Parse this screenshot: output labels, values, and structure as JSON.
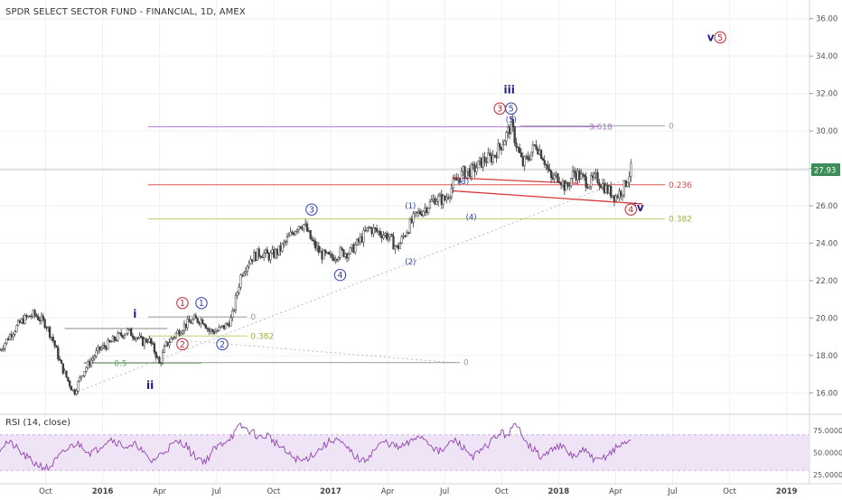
{
  "chart_data": {
    "type": "candlestick",
    "title": "SPDR SELECT SECTOR FUND - FINANCIAL, 1D, AMEX",
    "last_price": "27.93",
    "price_axis": {
      "ticks": [
        "16.00",
        "18.00",
        "20.00",
        "22.00",
        "24.00",
        "26.00",
        "28.00",
        "30.00",
        "32.00",
        "34.00",
        "36.00"
      ],
      "ylim": [
        15.0,
        37.0
      ]
    },
    "time_axis": {
      "labels": [
        "Oct",
        "2016",
        "Apr",
        "Jul",
        "Oct",
        "2017",
        "Apr",
        "Jul",
        "Oct",
        "2018",
        "Apr",
        "Jul",
        "Oct",
        "2019"
      ],
      "bold_labels": [
        "2016",
        "2017",
        "2018",
        "2019"
      ],
      "months": [
        0,
        3,
        6,
        9,
        12,
        15,
        18,
        21,
        24,
        27,
        30,
        33,
        36,
        39
      ],
      "xlim": [
        -2.4,
        40.2
      ]
    },
    "price_path": [
      [
        -2.4,
        18.3
      ],
      [
        -1.8,
        19.2
      ],
      [
        -1.2,
        19.9
      ],
      [
        -0.6,
        20.2
      ],
      [
        0.0,
        19.7
      ],
      [
        0.4,
        18.8
      ],
      [
        0.8,
        17.5
      ],
      [
        1.2,
        16.6
      ],
      [
        1.5,
        16.0
      ],
      [
        1.9,
        17.0
      ],
      [
        2.3,
        17.6
      ],
      [
        2.8,
        18.3
      ],
      [
        3.3,
        18.6
      ],
      [
        3.8,
        19.0
      ],
      [
        4.3,
        19.3
      ],
      [
        4.8,
        19.0
      ],
      [
        5.1,
        18.7
      ],
      [
        5.4,
        18.9
      ],
      [
        5.8,
        18.1
      ],
      [
        6.0,
        17.5
      ],
      [
        6.3,
        18.5
      ],
      [
        6.8,
        19.1
      ],
      [
        7.3,
        19.6
      ],
      [
        7.8,
        19.9
      ],
      [
        8.3,
        19.9
      ],
      [
        8.6,
        19.3
      ],
      [
        9.0,
        19.3
      ],
      [
        9.5,
        19.6
      ],
      [
        9.8,
        20.0
      ],
      [
        10.3,
        22.4
      ],
      [
        10.8,
        23.2
      ],
      [
        11.3,
        23.5
      ],
      [
        11.8,
        23.3
      ],
      [
        12.3,
        23.6
      ],
      [
        12.8,
        24.3
      ],
      [
        13.3,
        25.0
      ],
      [
        13.6,
        25.0
      ],
      [
        14.0,
        24.1
      ],
      [
        14.5,
        23.4
      ],
      [
        15.0,
        23.2
      ],
      [
        15.5,
        23.5
      ],
      [
        16.0,
        23.5
      ],
      [
        16.5,
        24.1
      ],
      [
        17.0,
        24.8
      ],
      [
        17.5,
        24.6
      ],
      [
        18.0,
        24.4
      ],
      [
        18.5,
        23.7
      ],
      [
        19.0,
        24.7
      ],
      [
        19.5,
        25.5
      ],
      [
        20.0,
        25.9
      ],
      [
        20.5,
        26.4
      ],
      [
        21.0,
        26.3
      ],
      [
        21.5,
        27.2
      ],
      [
        22.0,
        27.8
      ],
      [
        22.5,
        27.9
      ],
      [
        23.0,
        28.4
      ],
      [
        23.5,
        28.6
      ],
      [
        24.0,
        29.3
      ],
      [
        24.5,
        30.3
      ],
      [
        24.8,
        29.2
      ],
      [
        25.1,
        28.2
      ],
      [
        25.4,
        28.6
      ],
      [
        25.8,
        29.3
      ],
      [
        26.2,
        28.6
      ],
      [
        26.6,
        27.4
      ],
      [
        27.0,
        27.6
      ],
      [
        27.4,
        26.9
      ],
      [
        27.8,
        27.8
      ],
      [
        28.2,
        27.5
      ],
      [
        28.6,
        27.2
      ],
      [
        29.0,
        27.5
      ],
      [
        29.5,
        26.9
      ],
      [
        30.0,
        26.5
      ],
      [
        30.4,
        26.9
      ],
      [
        30.8,
        27.93
      ]
    ],
    "levels": [
      {
        "name": "fib-0-top",
        "label": "0",
        "price": 30.27,
        "x1": 25.0,
        "x2": 32.6,
        "color": "#aaaaaa",
        "label_color": "#999999"
      },
      {
        "name": "fib-3618",
        "label": "3.618",
        "price": 30.22,
        "x1": 5.4,
        "x2": 29.0,
        "color": "#b57ddb",
        "label_color": "#a06cc8"
      },
      {
        "name": "fib-0236",
        "label": "0.236",
        "price": 27.12,
        "x1": 5.4,
        "x2": 32.6,
        "color": "#e05555",
        "label_color": "#d94848"
      },
      {
        "name": "fib-0382-top",
        "label": "0.382",
        "price": 25.3,
        "x1": 5.4,
        "x2": 32.6,
        "color": "#bcd26e",
        "label_color": "#9bb33a"
      },
      {
        "name": "fib-0-mid",
        "label": "0",
        "price": 20.06,
        "x1": 5.4,
        "x2": 10.6,
        "color": "#999999",
        "label_color": "#999999"
      },
      {
        "name": "fib-0382-mid",
        "label": "0.382",
        "price": 19.04,
        "x1": 5.4,
        "x2": 10.6,
        "color": "#bcd26e",
        "label_color": "#9bb33a"
      },
      {
        "name": "fib-05",
        "label": "0.5",
        "price": 17.58,
        "x1": 2.0,
        "x2": 8.2,
        "color": "#7fc47f",
        "label_color": "#5aa55a"
      },
      {
        "name": "fib-0-low",
        "label": "0",
        "price": 17.62,
        "x1": 2.0,
        "x2": 21.8,
        "color": "#999999",
        "label_color": "#999999"
      },
      {
        "name": "range-top-left",
        "label": "",
        "price": 19.44,
        "x1": 1.0,
        "x2": 6.4,
        "color": "#888888",
        "label_color": "#888888"
      }
    ],
    "trendlines": [
      {
        "name": "wedge-lower",
        "from": [
          21.4,
          26.8
        ],
        "to": [
          31.4,
          26.1
        ],
        "color": "#d93a3a"
      },
      {
        "name": "wedge-upper",
        "from": [
          21.4,
          27.5
        ],
        "to": [
          28.0,
          27.2
        ],
        "color": "#d93a3a"
      },
      {
        "name": "dotted-trend",
        "from": [
          1.5,
          16.0
        ],
        "to": [
          31.0,
          27.6
        ],
        "color": "#bbbbbb"
      },
      {
        "name": "dotted-horizontal",
        "from": [
          6.2,
          18.9
        ],
        "to": [
          21.6,
          17.6
        ],
        "color": "#bbbbbb"
      }
    ],
    "wave_labels": [
      {
        "text": "i",
        "x": 4.7,
        "price": 20.2,
        "style": "roman",
        "color": "#1c1c8c"
      },
      {
        "text": "ii",
        "x": 5.5,
        "price": 16.4,
        "style": "roman",
        "color": "#1c1c8c"
      },
      {
        "text": "iii",
        "x": 24.4,
        "price": 32.2,
        "style": "roman",
        "color": "#1c1c8c"
      },
      {
        "text": "iv",
        "x": 31.2,
        "price": 25.9,
        "style": "roman",
        "color": "#1c1c8c"
      },
      {
        "text": "v",
        "x": 35.0,
        "price": 35.0,
        "style": "roman",
        "color": "#1c1c8c"
      },
      {
        "text": "1",
        "x": 7.2,
        "price": 20.8,
        "style": "circle",
        "color": "#c0242b"
      },
      {
        "text": "2",
        "x": 7.2,
        "price": 18.6,
        "style": "circle",
        "color": "#c0242b"
      },
      {
        "text": "3",
        "x": 23.9,
        "price": 31.2,
        "style": "circle",
        "color": "#c0242b"
      },
      {
        "text": "4",
        "x": 30.8,
        "price": 25.8,
        "style": "circle",
        "color": "#c0242b"
      },
      {
        "text": "5",
        "x": 35.5,
        "price": 35.0,
        "style": "circle",
        "color": "#c0242b"
      },
      {
        "text": "1",
        "x": 8.2,
        "price": 20.8,
        "style": "circle",
        "color": "#2f3ea8"
      },
      {
        "text": "2",
        "x": 9.3,
        "price": 18.6,
        "style": "circle",
        "color": "#2f3ea8"
      },
      {
        "text": "3",
        "x": 14.0,
        "price": 25.8,
        "style": "circle",
        "color": "#2f3ea8"
      },
      {
        "text": "4",
        "x": 15.5,
        "price": 22.3,
        "style": "circle",
        "color": "#2f3ea8"
      },
      {
        "text": "5",
        "x": 24.5,
        "price": 31.2,
        "style": "circle",
        "color": "#2f3ea8"
      },
      {
        "text": "(1)",
        "x": 19.2,
        "price": 26.0,
        "style": "paren",
        "color": "#2f3ea8"
      },
      {
        "text": "(2)",
        "x": 19.2,
        "price": 23.0,
        "style": "paren",
        "color": "#2f3ea8"
      },
      {
        "text": "(3)",
        "x": 22.0,
        "price": 27.3,
        "style": "paren",
        "color": "#2f3ea8"
      },
      {
        "text": "(4)",
        "x": 22.4,
        "price": 25.4,
        "style": "paren",
        "color": "#2f3ea8"
      },
      {
        "text": "(5)",
        "x": 24.5,
        "price": 30.6,
        "style": "paren",
        "color": "#2f3ea8"
      }
    ],
    "rsi": {
      "title": "RSI (14, close)",
      "ticks": [
        "25.0000",
        "50.0000",
        "75.0000"
      ],
      "ylim": [
        15,
        90
      ],
      "band": [
        30,
        70
      ],
      "values": [
        55,
        62,
        58,
        50,
        44,
        38,
        35,
        32,
        40,
        48,
        55,
        60,
        58,
        50,
        52,
        60,
        66,
        62,
        58,
        55,
        60,
        48,
        40,
        45,
        52,
        58,
        62,
        60,
        48,
        44,
        40,
        52,
        58,
        64,
        70,
        80,
        76,
        72,
        66,
        70,
        62,
        56,
        48,
        44,
        40,
        45,
        50,
        56,
        62,
        66,
        58,
        52,
        44,
        40,
        48,
        56,
        62,
        60,
        55,
        58,
        62,
        70,
        65,
        58,
        50,
        55,
        64,
        60,
        52,
        46,
        50,
        58,
        66,
        72,
        70,
        80,
        74,
        60,
        52,
        44,
        50,
        58,
        56,
        48,
        46,
        52,
        48,
        40,
        44,
        50,
        56,
        60,
        66
      ]
    }
  }
}
